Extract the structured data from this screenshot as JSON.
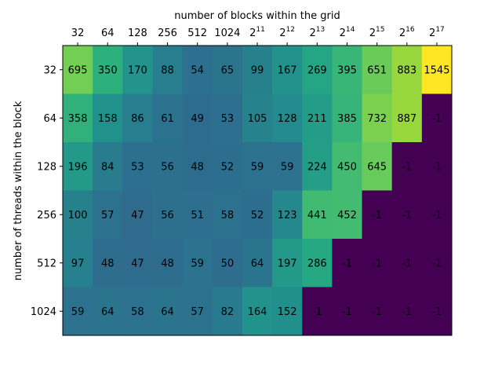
{
  "chart_data": {
    "type": "heatmap",
    "xlabel": "number of blocks within the grid",
    "ylabel": "number of threads within the block",
    "x_ticks": [
      {
        "base": "32"
      },
      {
        "base": "64"
      },
      {
        "base": "128"
      },
      {
        "base": "256"
      },
      {
        "base": "512"
      },
      {
        "base": "1024"
      },
      {
        "base": "2",
        "exp": "11"
      },
      {
        "base": "2",
        "exp": "12"
      },
      {
        "base": "2",
        "exp": "13"
      },
      {
        "base": "2",
        "exp": "14"
      },
      {
        "base": "2",
        "exp": "15"
      },
      {
        "base": "2",
        "exp": "16"
      },
      {
        "base": "2",
        "exp": "17"
      }
    ],
    "y_ticks": [
      "32",
      "64",
      "128",
      "256",
      "512",
      "1024"
    ],
    "x_axis_position": "top",
    "colormap": "viridis",
    "value_range": [
      -1,
      1545
    ],
    "values": [
      [
        695,
        350,
        170,
        88,
        54,
        65,
        99,
        167,
        269,
        395,
        651,
        883,
        1545
      ],
      [
        358,
        158,
        86,
        61,
        49,
        53,
        105,
        128,
        211,
        385,
        732,
        887,
        -1
      ],
      [
        196,
        84,
        53,
        56,
        48,
        52,
        59,
        59,
        224,
        450,
        645,
        -1,
        -1
      ],
      [
        100,
        57,
        47,
        56,
        51,
        58,
        52,
        123,
        441,
        452,
        -1,
        -1,
        -1
      ],
      [
        97,
        48,
        47,
        48,
        59,
        50,
        64,
        197,
        286,
        -1,
        -1,
        -1,
        -1
      ],
      [
        59,
        64,
        58,
        64,
        57,
        82,
        164,
        152,
        -1,
        -1,
        -1,
        -1,
        -1
      ]
    ]
  }
}
